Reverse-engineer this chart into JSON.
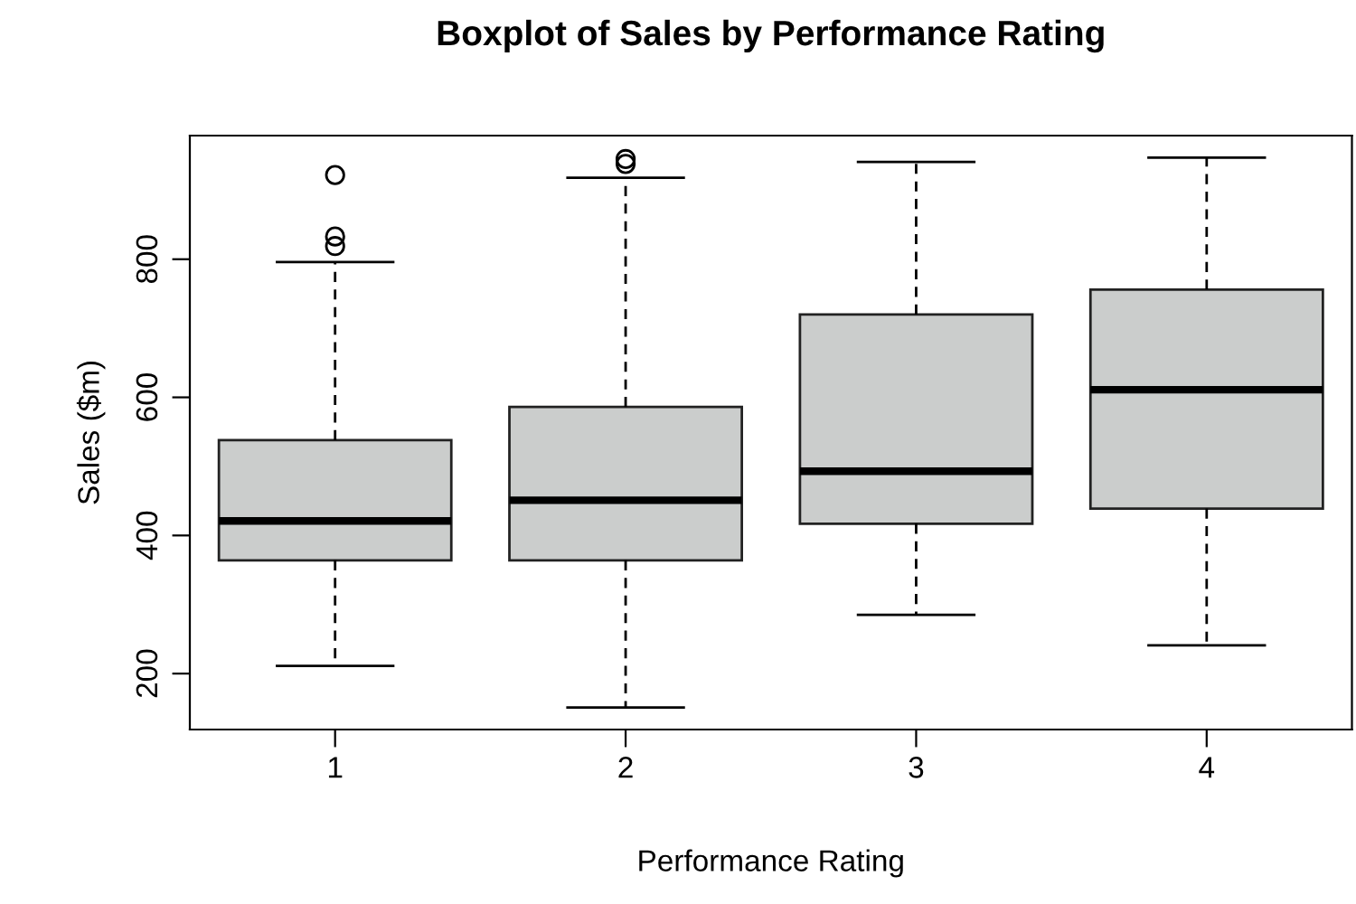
{
  "chart_data": {
    "type": "box",
    "title": "Boxplot of Sales by Performance Rating",
    "xlabel": "Performance Rating",
    "ylabel": "Sales ($m)",
    "categories": [
      "1",
      "2",
      "3",
      "4"
    ],
    "boxes": [
      {
        "low": 211,
        "q1": 364,
        "median": 421,
        "q3": 538,
        "high": 796,
        "outliers": [
          922,
          833,
          819
        ]
      },
      {
        "low": 151,
        "q1": 364,
        "median": 451,
        "q3": 586,
        "high": 918,
        "outliers": [
          945,
          938
        ]
      },
      {
        "low": 285,
        "q1": 417,
        "median": 493,
        "q3": 720,
        "high": 941
      },
      {
        "low": 241,
        "q1": 439,
        "median": 611,
        "q3": 756,
        "high": 947
      }
    ],
    "color": "#cbcdcc",
    "ylim": [
      119,
      979
    ],
    "yticks": [
      200,
      400,
      600,
      800
    ],
    "grid": false
  }
}
